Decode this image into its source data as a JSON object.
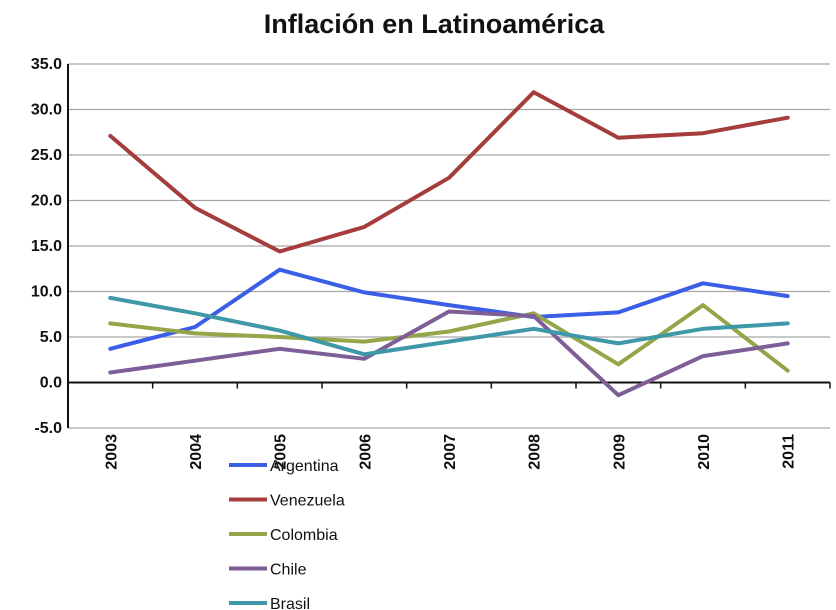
{
  "chart_data": {
    "type": "line",
    "title": "Inflación en Latinoamérica",
    "xlabel": "",
    "ylabel": "",
    "categories": [
      "2003",
      "2004",
      "2005",
      "2006",
      "2007",
      "2008",
      "2009",
      "2010",
      "2011"
    ],
    "ylim": [
      -5,
      35
    ],
    "yticks": [
      35,
      30,
      25,
      20,
      15,
      10,
      5,
      0,
      -5
    ],
    "ytick_labels": [
      "35.0",
      "30.0",
      "25.0",
      "20.0",
      "15.0",
      "10.0",
      "5.0",
      "0.0",
      "-5.0"
    ],
    "grid": true,
    "legend_position": "bottom-left",
    "series": [
      {
        "name": "Argentina",
        "color": "#3b5ee6",
        "values": [
          3.7,
          6.1,
          12.4,
          9.9,
          8.5,
          7.2,
          7.7,
          10.9,
          9.5
        ]
      },
      {
        "name": "Venezuela",
        "color": "#a43d3b",
        "values": [
          27.1,
          19.2,
          14.4,
          17.1,
          22.5,
          31.9,
          26.9,
          27.4,
          29.1
        ]
      },
      {
        "name": "Colombia",
        "color": "#94a54a",
        "values": [
          6.5,
          5.4,
          5.0,
          4.5,
          5.6,
          7.6,
          2.0,
          8.5,
          1.3
        ]
      },
      {
        "name": "Chile",
        "color": "#7d5e97",
        "values": [
          1.1,
          2.4,
          3.7,
          2.6,
          7.8,
          7.3,
          -1.4,
          2.9,
          4.3
        ]
      },
      {
        "name": "Brasil",
        "color": "#3e98a7",
        "values": [
          9.3,
          7.6,
          5.7,
          3.1,
          4.5,
          5.9,
          4.3,
          5.9,
          6.5
        ]
      }
    ]
  }
}
